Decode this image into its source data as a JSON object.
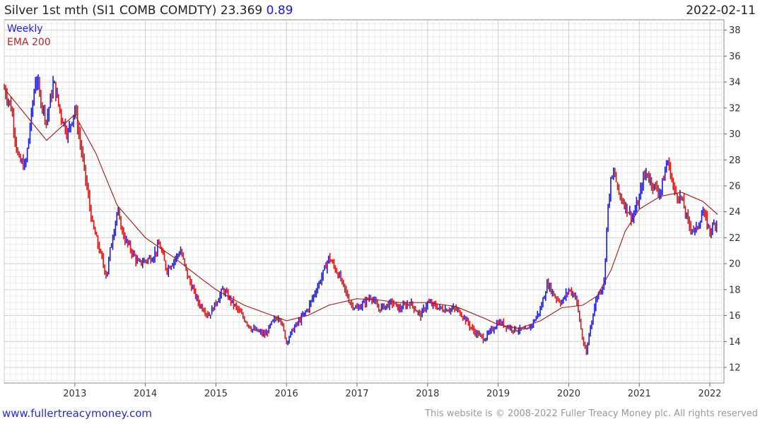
{
  "header": {
    "title": "Silver 1st mth (SI1 COMB COMDTY) 23.369",
    "change": "0.89",
    "date": "2022-02-11"
  },
  "legend": {
    "series1": "Weekly",
    "series2": "EMA 200"
  },
  "footer": {
    "site": "www.fullertreacymoney.com",
    "copyright": "This website is © 2008-2022 Fuller Treacy Money plc. All rights reserved"
  },
  "colors": {
    "up": "#1a1ae0",
    "down": "#e01010",
    "ema": "#a01818",
    "grid": "#dcdcdc"
  },
  "chart_data": {
    "type": "line",
    "x_axis": {
      "labels": [
        "2013",
        "2014",
        "2015",
        "2016",
        "2017",
        "2018",
        "2019",
        "2020",
        "2021",
        "2022"
      ]
    },
    "y_axis": {
      "labels": [
        12,
        14,
        16,
        18,
        20,
        22,
        24,
        26,
        28,
        30,
        32,
        34,
        36,
        38
      ],
      "range": [
        10.8,
        38.8
      ],
      "position": "right"
    },
    "series": [
      {
        "name": "Weekly",
        "x": [
          2012.0,
          2012.1,
          2012.2,
          2012.3,
          2012.45,
          2012.5,
          2012.6,
          2012.7,
          2012.8,
          2012.9,
          2013.0,
          2013.1,
          2013.25,
          2013.45,
          2013.5,
          2013.6,
          2013.7,
          2013.9,
          2014.1,
          2014.2,
          2014.3,
          2014.5,
          2014.6,
          2014.75,
          2014.9,
          2015.0,
          2015.1,
          2015.3,
          2015.5,
          2015.7,
          2015.8,
          2015.9,
          2016.0,
          2016.1,
          2016.3,
          2016.5,
          2016.6,
          2016.75,
          2016.9,
          2017.0,
          2017.2,
          2017.3,
          2017.5,
          2017.6,
          2017.75,
          2017.9,
          2018.0,
          2018.2,
          2018.4,
          2018.5,
          2018.65,
          2018.8,
          2018.9,
          2019.0,
          2019.2,
          2019.4,
          2019.5,
          2019.6,
          2019.7,
          2019.8,
          2019.9,
          2020.0,
          2020.1,
          2020.2,
          2020.25,
          2020.3,
          2020.4,
          2020.5,
          2020.55,
          2020.6,
          2020.65,
          2020.7,
          2020.8,
          2020.9,
          2021.0,
          2021.05,
          2021.1,
          2021.2,
          2021.3,
          2021.4,
          2021.5,
          2021.6,
          2021.7,
          2021.8,
          2021.9,
          2022.0,
          2022.11
        ],
        "values": [
          33.5,
          32.0,
          28.0,
          27.5,
          34.5,
          33.0,
          31.0,
          34.0,
          31.5,
          30.0,
          32.0,
          28.5,
          23.0,
          19.0,
          21.0,
          24.0,
          22.0,
          20.0,
          20.5,
          21.5,
          19.5,
          21.0,
          19.0,
          17.0,
          16.0,
          17.0,
          18.0,
          16.5,
          15.0,
          14.5,
          15.5,
          16.0,
          14.0,
          15.0,
          16.5,
          19.0,
          20.5,
          19.0,
          17.0,
          16.5,
          17.5,
          16.5,
          17.0,
          16.5,
          17.0,
          16.0,
          17.0,
          16.5,
          16.5,
          16.0,
          14.8,
          14.2,
          14.8,
          15.5,
          15.0,
          14.8,
          15.5,
          16.5,
          18.5,
          17.5,
          17.0,
          18.0,
          17.5,
          14.0,
          13.0,
          15.0,
          17.5,
          18.5,
          24.0,
          26.5,
          27.0,
          25.5,
          24.5,
          23.5,
          25.0,
          26.5,
          27.0,
          26.0,
          25.5,
          28.0,
          25.5,
          25.0,
          23.0,
          22.5,
          24.0,
          22.5,
          23.4
        ]
      },
      {
        "name": "EMA 200",
        "x": [
          2012.0,
          2012.3,
          2012.6,
          2013.0,
          2013.3,
          2013.6,
          2014.0,
          2014.4,
          2014.8,
          2015.0,
          2015.4,
          2015.8,
          2016.0,
          2016.3,
          2016.6,
          2017.0,
          2017.3,
          2017.6,
          2018.0,
          2018.4,
          2018.8,
          2019.0,
          2019.3,
          2019.6,
          2019.9,
          2020.2,
          2020.4,
          2020.6,
          2020.8,
          2021.0,
          2021.3,
          2021.6,
          2021.9,
          2022.11
        ],
        "values": [
          33.5,
          31.5,
          29.5,
          31.5,
          28.5,
          24.5,
          22.0,
          20.5,
          18.8,
          18.0,
          16.8,
          16.0,
          15.6,
          16.0,
          16.8,
          17.3,
          17.2,
          17.0,
          17.0,
          16.7,
          15.8,
          15.3,
          15.0,
          15.6,
          16.6,
          16.8,
          17.5,
          19.5,
          22.5,
          24.2,
          25.2,
          25.5,
          24.8,
          23.8
        ]
      }
    ]
  }
}
